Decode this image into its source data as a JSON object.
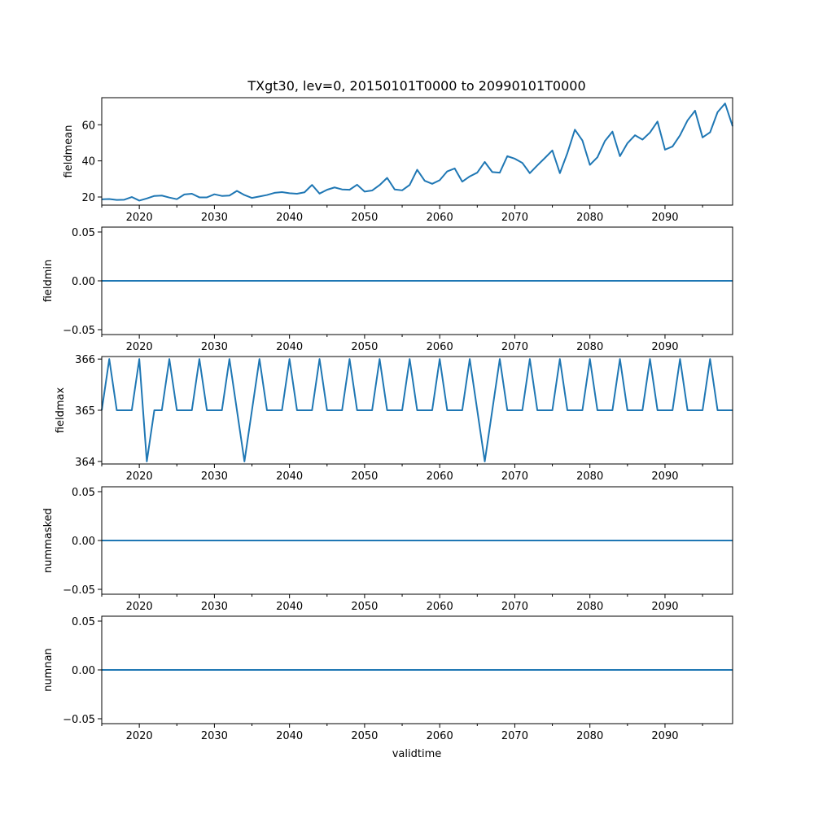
{
  "chart_data": {
    "type": "line",
    "title": "TXgt30, lev=0, 20150101T0000 to 20990101T0000",
    "xlabel": "validtime",
    "line_color": "#1f77b4",
    "x_range": [
      2015,
      2099
    ],
    "x_major_ticks": [
      2020,
      2030,
      2040,
      2050,
      2060,
      2070,
      2080,
      2090
    ],
    "x_tick_labels": [
      "2020",
      "2030",
      "2040",
      "2050",
      "2060",
      "2070",
      "2080",
      "2090"
    ],
    "x_minor_step": 5,
    "x": [
      2015,
      2016,
      2017,
      2018,
      2019,
      2020,
      2021,
      2022,
      2023,
      2024,
      2025,
      2026,
      2027,
      2028,
      2029,
      2030,
      2031,
      2032,
      2033,
      2034,
      2035,
      2036,
      2037,
      2038,
      2039,
      2040,
      2041,
      2042,
      2043,
      2044,
      2045,
      2046,
      2047,
      2048,
      2049,
      2050,
      2051,
      2052,
      2053,
      2054,
      2055,
      2056,
      2057,
      2058,
      2059,
      2060,
      2061,
      2062,
      2063,
      2064,
      2065,
      2066,
      2067,
      2068,
      2069,
      2070,
      2071,
      2072,
      2073,
      2074,
      2075,
      2076,
      2077,
      2078,
      2079,
      2080,
      2081,
      2082,
      2083,
      2084,
      2085,
      2086,
      2087,
      2088,
      2089,
      2090,
      2091,
      2092,
      2093,
      2094,
      2095,
      2096,
      2097,
      2098,
      2099
    ],
    "panels": [
      {
        "name": "fieldmean",
        "ylabel": "fieldmean",
        "ylim": [
          15.5,
          75
        ],
        "y_ticks": [
          20,
          40,
          60
        ],
        "y_tick_labels": [
          "20",
          "40",
          "60"
        ],
        "values": [
          18.7,
          18.9,
          18.4,
          18.5,
          20.0,
          18.0,
          19.2,
          20.6,
          20.8,
          19.7,
          18.8,
          21.4,
          21.8,
          19.8,
          19.8,
          21.5,
          20.6,
          20.8,
          23.4,
          21.1,
          19.5,
          20.3,
          21.1,
          22.3,
          22.7,
          22.1,
          21.8,
          22.6,
          26.7,
          21.9,
          24.0,
          25.3,
          24.2,
          24.0,
          26.8,
          23.0,
          23.6,
          26.6,
          30.6,
          24.2,
          23.7,
          26.7,
          35.1,
          29.0,
          27.3,
          29.3,
          34.2,
          35.8,
          28.5,
          31.4,
          33.5,
          39.4,
          33.8,
          33.5,
          42.6,
          41.2,
          38.9,
          33.2,
          37.5,
          41.6,
          45.8,
          33.2,
          44.3,
          57.3,
          51.3,
          37.8,
          42.0,
          51.0,
          56.2,
          42.6,
          49.8,
          54.2,
          51.8,
          55.7,
          61.8,
          46.2,
          48.0,
          54.2,
          62.4,
          67.8,
          53.0,
          55.8,
          67.0,
          71.8,
          59.2
        ]
      },
      {
        "name": "fieldmin",
        "ylabel": "fieldmin",
        "ylim": [
          -0.055,
          0.055
        ],
        "y_ticks": [
          -0.05,
          0.0,
          0.05
        ],
        "y_tick_labels": [
          "−0.05",
          "0.00",
          "0.05"
        ],
        "values": [
          0,
          0,
          0,
          0,
          0,
          0,
          0,
          0,
          0,
          0,
          0,
          0,
          0,
          0,
          0,
          0,
          0,
          0,
          0,
          0,
          0,
          0,
          0,
          0,
          0,
          0,
          0,
          0,
          0,
          0,
          0,
          0,
          0,
          0,
          0,
          0,
          0,
          0,
          0,
          0,
          0,
          0,
          0,
          0,
          0,
          0,
          0,
          0,
          0,
          0,
          0,
          0,
          0,
          0,
          0,
          0,
          0,
          0,
          0,
          0,
          0,
          0,
          0,
          0,
          0,
          0,
          0,
          0,
          0,
          0,
          0,
          0,
          0,
          0,
          0,
          0,
          0,
          0,
          0,
          0,
          0,
          0,
          0,
          0,
          0
        ]
      },
      {
        "name": "fieldmax",
        "ylabel": "fieldmax",
        "ylim": [
          363.95,
          366.05
        ],
        "y_ticks": [
          364,
          365,
          366
        ],
        "y_tick_labels": [
          "364",
          "365",
          "366"
        ],
        "values": [
          365,
          366,
          365,
          365,
          365,
          366,
          364,
          365,
          365,
          366,
          365,
          365,
          365,
          366,
          365,
          365,
          365,
          366,
          365,
          364,
          365,
          366,
          365,
          365,
          365,
          366,
          365,
          365,
          365,
          366,
          365,
          365,
          365,
          366,
          365,
          365,
          365,
          366,
          365,
          365,
          365,
          366,
          365,
          365,
          365,
          366,
          365,
          365,
          365,
          366,
          365,
          364,
          365,
          366,
          365,
          365,
          365,
          366,
          365,
          365,
          365,
          366,
          365,
          365,
          365,
          366,
          365,
          365,
          365,
          366,
          365,
          365,
          365,
          366,
          365,
          365,
          365,
          366,
          365,
          365,
          365,
          366,
          365,
          365,
          365
        ]
      },
      {
        "name": "nummasked",
        "ylabel": "nummasked",
        "ylim": [
          -0.055,
          0.055
        ],
        "y_ticks": [
          -0.05,
          0.0,
          0.05
        ],
        "y_tick_labels": [
          "−0.05",
          "0.00",
          "0.05"
        ],
        "values": [
          0,
          0,
          0,
          0,
          0,
          0,
          0,
          0,
          0,
          0,
          0,
          0,
          0,
          0,
          0,
          0,
          0,
          0,
          0,
          0,
          0,
          0,
          0,
          0,
          0,
          0,
          0,
          0,
          0,
          0,
          0,
          0,
          0,
          0,
          0,
          0,
          0,
          0,
          0,
          0,
          0,
          0,
          0,
          0,
          0,
          0,
          0,
          0,
          0,
          0,
          0,
          0,
          0,
          0,
          0,
          0,
          0,
          0,
          0,
          0,
          0,
          0,
          0,
          0,
          0,
          0,
          0,
          0,
          0,
          0,
          0,
          0,
          0,
          0,
          0,
          0,
          0,
          0,
          0,
          0,
          0,
          0,
          0,
          0,
          0
        ]
      },
      {
        "name": "numnan",
        "ylabel": "numnan",
        "ylim": [
          -0.055,
          0.055
        ],
        "y_ticks": [
          -0.05,
          0.0,
          0.05
        ],
        "y_tick_labels": [
          "−0.05",
          "0.00",
          "0.05"
        ],
        "values": [
          0,
          0,
          0,
          0,
          0,
          0,
          0,
          0,
          0,
          0,
          0,
          0,
          0,
          0,
          0,
          0,
          0,
          0,
          0,
          0,
          0,
          0,
          0,
          0,
          0,
          0,
          0,
          0,
          0,
          0,
          0,
          0,
          0,
          0,
          0,
          0,
          0,
          0,
          0,
          0,
          0,
          0,
          0,
          0,
          0,
          0,
          0,
          0,
          0,
          0,
          0,
          0,
          0,
          0,
          0,
          0,
          0,
          0,
          0,
          0,
          0,
          0,
          0,
          0,
          0,
          0,
          0,
          0,
          0,
          0,
          0,
          0,
          0,
          0,
          0,
          0,
          0,
          0,
          0,
          0,
          0,
          0,
          0,
          0,
          0
        ]
      }
    ]
  }
}
